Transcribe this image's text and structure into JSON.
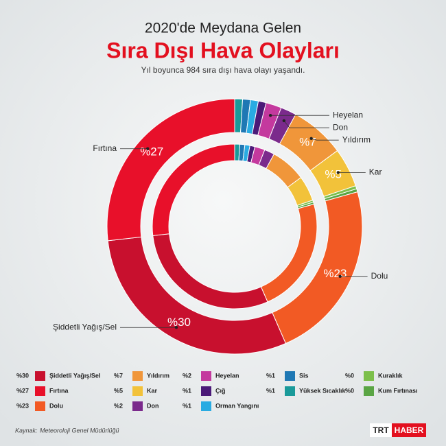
{
  "chart_data": {
    "type": "donut",
    "title": "2020'de Meydana Gelen",
    "headline": "Sıra Dışı Hava Olayları",
    "subtitle": "Yıl boyunca 984 sıra dışı hava olayı yaşandı.",
    "categories": [
      "Yüksek Sıcaklık",
      "Sis",
      "Orman Yangını",
      "Çığ",
      "Heyelan",
      "Don",
      "Yıldırım",
      "Kar",
      "Kuraklık",
      "Kum Fırtınası",
      "Dolu",
      "Şiddetli Yağış/Sel",
      "Fırtına"
    ],
    "values": [
      1,
      1,
      1,
      1,
      2,
      2,
      7,
      5,
      0.4,
      0.4,
      23,
      30,
      27
    ],
    "value_labels": [
      "%1",
      "%1",
      "%1",
      "%1",
      "%2",
      "%2",
      "%7",
      "%5",
      "%0",
      "%0",
      "%23",
      "%30",
      "%27"
    ],
    "colors": [
      "#1a9a9a",
      "#1f78b4",
      "#29abe2",
      "#4b1a78",
      "#c4399e",
      "#7b2a8c",
      "#f0963a",
      "#f2c23a",
      "#7cbf4a",
      "#5aa544",
      "#f25a24",
      "#c8102e",
      "#e8102a"
    ],
    "source_label": "Kaynak:",
    "source": "Meteoroloji Genel Müdürlüğü",
    "brand": [
      "TRT",
      "HABER"
    ]
  }
}
